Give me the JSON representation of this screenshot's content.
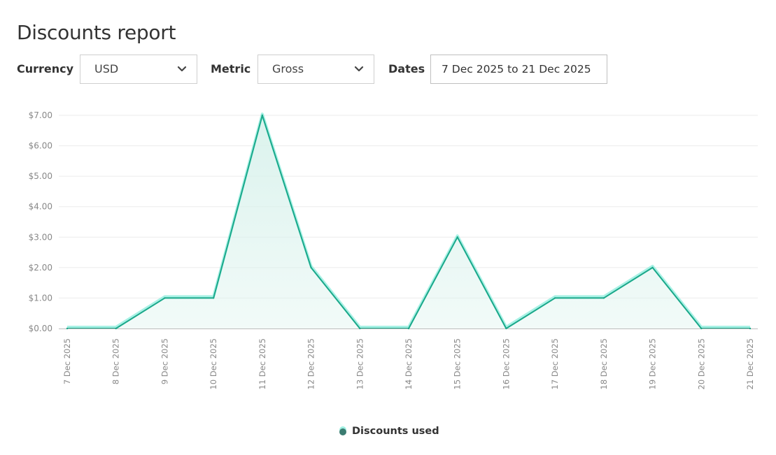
{
  "header": {
    "title": "Discounts report"
  },
  "filters": {
    "currency": {
      "label": "Currency",
      "value": "USD"
    },
    "metric": {
      "label": "Metric",
      "value": "Gross"
    },
    "dates": {
      "label": "Dates",
      "value": "7 Dec 2025 to 21 Dec 2025"
    }
  },
  "icons": {
    "dropdown": "chevron-down-icon"
  },
  "colors": {
    "line": "#1aa88a",
    "line_glow": "#9ff0e2",
    "fill": "#d9f2ec",
    "grid": "#ebebeb",
    "axis": "#bdbdbd"
  },
  "chart_data": {
    "type": "area",
    "categories": [
      "7 Dec 2025",
      "8 Dec 2025",
      "9 Dec 2025",
      "10 Dec 2025",
      "11 Dec 2025",
      "12 Dec 2025",
      "13 Dec 2025",
      "14 Dec 2025",
      "15 Dec 2025",
      "16 Dec 2025",
      "17 Dec 2025",
      "18 Dec 2025",
      "19 Dec 2025",
      "20 Dec 2025",
      "21 Dec 2025"
    ],
    "series": [
      {
        "name": "Discounts used",
        "values": [
          0,
          0,
          1,
          1,
          7,
          2,
          0,
          0,
          3,
          0,
          1,
          1,
          2,
          0,
          0
        ]
      }
    ],
    "y_ticks": [
      "$0.00",
      "$1.00",
      "$2.00",
      "$3.00",
      "$4.00",
      "$5.00",
      "$6.00",
      "$7.00"
    ],
    "ylim": [
      0,
      7
    ],
    "grid": true,
    "legend": "bottom-center"
  }
}
